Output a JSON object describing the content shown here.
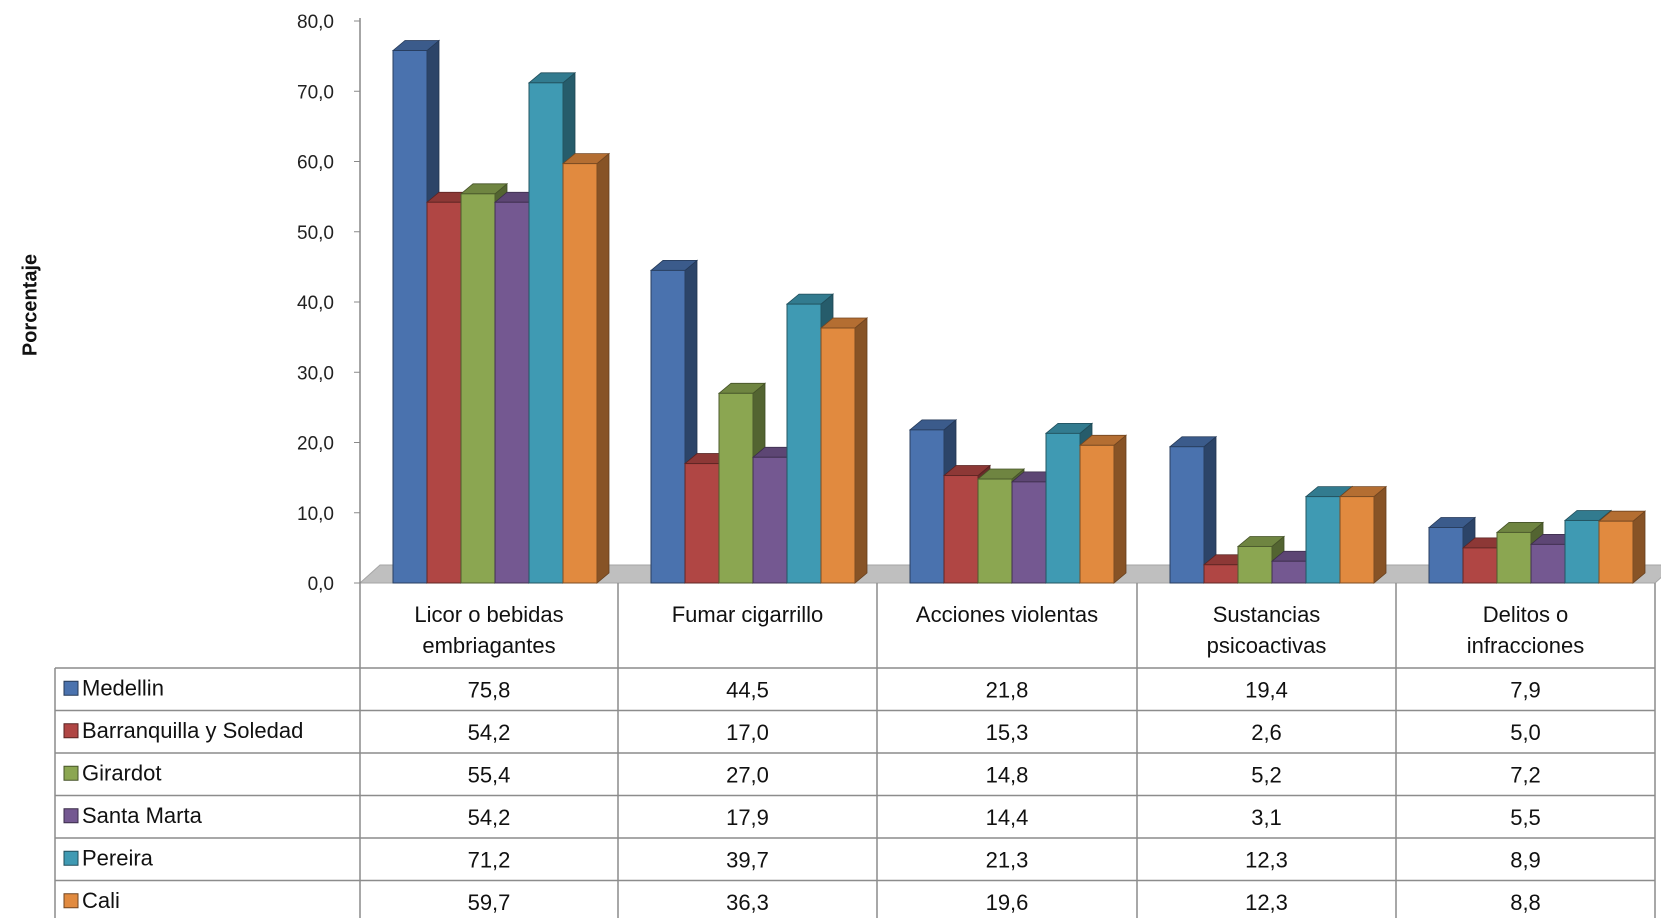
{
  "chart_data": {
    "type": "bar",
    "title": "",
    "xlabel": "",
    "ylabel": "Porcentaje",
    "ylim": [
      0,
      80
    ],
    "yticks": [
      "0,0",
      "10,0",
      "20,0",
      "30,0",
      "40,0",
      "50,0",
      "60,0",
      "70,0",
      "80,0"
    ],
    "decimal_separator": ",",
    "grid": false,
    "legend": "data-table-rows",
    "style": "3d-clustered-columns-with-data-table",
    "categories": [
      [
        "Licor o bebidas",
        "embriagantes"
      ],
      [
        "Fumar cigarrillo"
      ],
      [
        "Acciones violentas"
      ],
      [
        "Sustancias",
        "psicoactivas"
      ],
      [
        "Delitos o",
        "infracciones"
      ]
    ],
    "series": [
      {
        "name": "Medellin",
        "color": "#4A72AE",
        "values": [
          75.8,
          44.5,
          21.8,
          19.4,
          7.9
        ]
      },
      {
        "name": "Barranquilla y Soledad",
        "color": "#B04644",
        "values": [
          54.2,
          17.0,
          15.3,
          2.6,
          5.0
        ]
      },
      {
        "name": "Girardot",
        "color": "#8BA651",
        "values": [
          55.4,
          27.0,
          14.8,
          5.2,
          7.2
        ]
      },
      {
        "name": "Santa Marta",
        "color": "#745891",
        "values": [
          54.2,
          17.9,
          14.4,
          3.1,
          5.5
        ]
      },
      {
        "name": "Pereira",
        "color": "#3F9AB3",
        "values": [
          71.2,
          39.7,
          21.3,
          12.3,
          8.9
        ]
      },
      {
        "name": "Cali",
        "color": "#E18A3F",
        "values": [
          59.7,
          36.3,
          19.6,
          12.3,
          8.8
        ]
      }
    ]
  }
}
